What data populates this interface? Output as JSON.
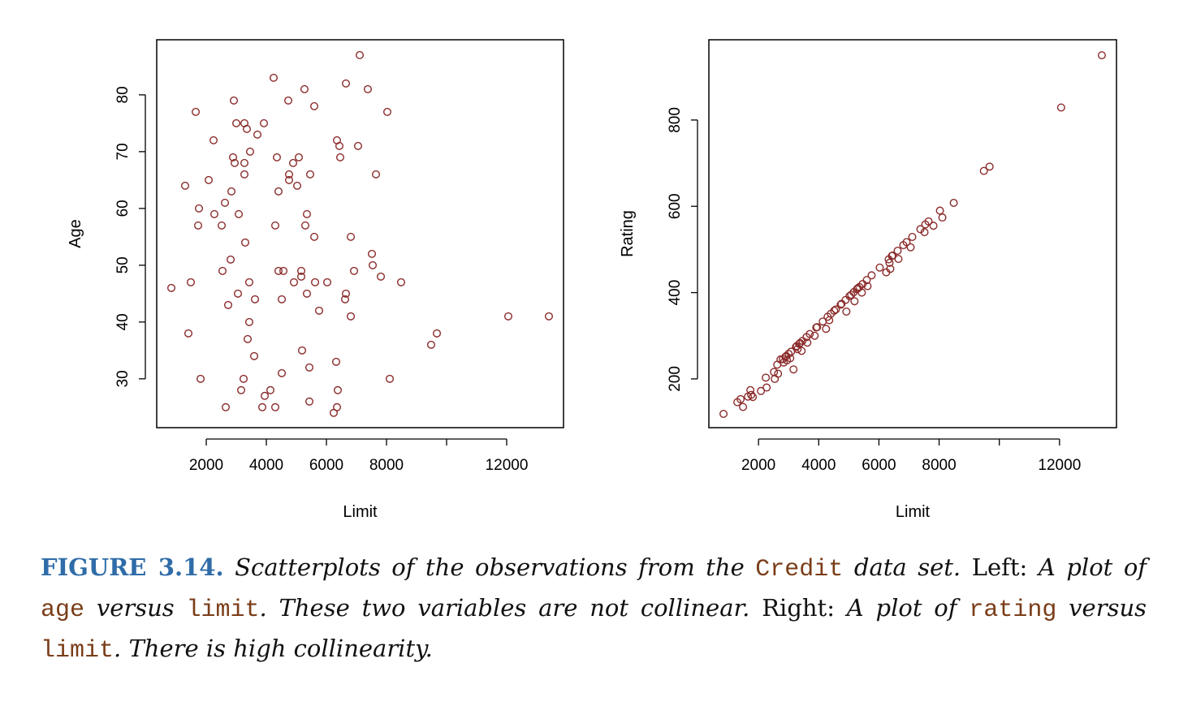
{
  "colors": {
    "points": "#8b2b2b",
    "caption_lead": "#2f6ca8",
    "code": "#7a3d18"
  },
  "chart_data": [
    {
      "type": "scatter",
      "title": "",
      "xlabel": "Limit",
      "ylabel": "Age",
      "xlim": [
        351,
        13892
      ],
      "ylim": [
        21.4,
        89.7
      ],
      "xticks": [
        2000,
        4000,
        6000,
        8000,
        10000,
        12000
      ],
      "xtick_labels": [
        "2000",
        "4000",
        "6000",
        "8000",
        "",
        "12000"
      ],
      "yticks": [
        30,
        40,
        50,
        60,
        70,
        80
      ],
      "ytick_labels": [
        "30",
        "40",
        "50",
        "60",
        "70",
        "80"
      ],
      "grid": false,
      "x": [
        838,
        1297,
        1405,
        1486,
        1649,
        1730,
        1757,
        1811,
        2081,
        2243,
        2270,
        2514,
        2541,
        2622,
        2649,
        2730,
        2811,
        2838,
        2892,
        2919,
        2946,
        3000,
        3054,
        3081,
        3162,
        3243,
        3270,
        3270,
        3270,
        3297,
        3351,
        3378,
        3432,
        3432,
        3459,
        3595,
        3622,
        3703,
        3865,
        3919,
        3946,
        4135,
        4243,
        4297,
        4297,
        4351,
        4405,
        4405,
        4514,
        4514,
        4568,
        4730,
        4757,
        4757,
        4892,
        4919,
        5027,
        5081,
        5162,
        5162,
        5189,
        5270,
        5297,
        5351,
        5351,
        5432,
        5432,
        5459,
        5595,
        5595,
        5622,
        5757,
        6027,
        6243,
        6324,
        6351,
        6351,
        6378,
        6432,
        6459,
        6622,
        6649,
        6649,
        6811,
        6811,
        6919,
        7054,
        7108,
        7378,
        7514,
        7541,
        7649,
        7811,
        8027,
        8108,
        8486,
        9486,
        9676,
        12054,
        13405
      ],
      "y": [
        46,
        64,
        38,
        47,
        77,
        57,
        60,
        30,
        65,
        72,
        59,
        57,
        49,
        61,
        25,
        43,
        51,
        63,
        69,
        79,
        68,
        75,
        45,
        59,
        28,
        30,
        75,
        68,
        66,
        54,
        74,
        37,
        47,
        40,
        70,
        34,
        44,
        73,
        25,
        75,
        27,
        28,
        83,
        57,
        25,
        69,
        63,
        49,
        44,
        31,
        49,
        79,
        66,
        65,
        68,
        47,
        64,
        69,
        49,
        48,
        35,
        81,
        57,
        59,
        45,
        32,
        26,
        66,
        78,
        55,
        47,
        42,
        47,
        24,
        33,
        72,
        25,
        28,
        71,
        69,
        44,
        82,
        45,
        55,
        41,
        49,
        71,
        87,
        81,
        52,
        50,
        66,
        48,
        77,
        30,
        47,
        36,
        38,
        41,
        41
      ]
    },
    {
      "type": "scatter",
      "title": "",
      "xlabel": "Limit",
      "ylabel": "Rating",
      "xlim": [
        351,
        13892
      ],
      "ylim": [
        87,
        986
      ],
      "xticks": [
        2000,
        4000,
        6000,
        8000,
        10000,
        12000
      ],
      "xtick_labels": [
        "2000",
        "4000",
        "6000",
        "8000",
        "",
        "12000"
      ],
      "yticks": [
        200,
        400,
        600,
        800
      ],
      "ytick_labels": [
        "200",
        "400",
        "600",
        "800"
      ],
      "grid": false,
      "x": [
        838,
        1297,
        1405,
        1486,
        1649,
        1730,
        1757,
        1811,
        2081,
        2243,
        2270,
        2514,
        2541,
        2622,
        2649,
        2730,
        2811,
        2838,
        2892,
        2919,
        2946,
        3000,
        3054,
        3081,
        3162,
        3243,
        3270,
        3297,
        3351,
        3378,
        3432,
        3459,
        3595,
        3622,
        3703,
        3865,
        3919,
        3946,
        4135,
        4243,
        4297,
        4351,
        4405,
        4514,
        4568,
        4730,
        4757,
        4892,
        4919,
        5027,
        5081,
        5162,
        5189,
        5270,
        5297,
        5351,
        5432,
        5459,
        5595,
        5622,
        5757,
        6027,
        6243,
        6324,
        6351,
        6378,
        6432,
        6459,
        6622,
        6649,
        6811,
        6919,
        7054,
        7108,
        7378,
        7514,
        7541,
        7649,
        7811,
        8027,
        8108,
        8486,
        9486,
        9676,
        12054,
        13405
      ],
      "y": [
        119,
        146,
        153,
        135,
        159,
        174,
        163,
        158,
        172,
        203,
        180,
        216,
        200,
        233,
        212,
        245,
        246,
        238,
        251,
        253,
        243,
        258,
        248,
        263,
        222,
        274,
        276,
        269,
        281,
        283,
        265,
        288,
        297,
        284,
        304,
        300,
        319,
        320,
        333,
        316,
        344,
        336,
        351,
        358,
        361,
        372,
        374,
        383,
        356,
        392,
        395,
        401,
        380,
        408,
        410,
        413,
        400,
        420,
        429,
        415,
        440,
        458,
        447,
        477,
        469,
        455,
        485,
        486,
        497,
        478,
        510,
        517,
        505,
        529,
        547,
        540,
        558,
        565,
        555,
        590,
        574,
        608,
        682,
        692,
        829,
        950
      ]
    }
  ],
  "caption": {
    "lead": "FIGURE 3.14.",
    "t1": "Scatterplots of the observations from the",
    "code1": "Credit",
    "t2": "data set.",
    "t3": "Left:",
    "t4": "A plot of",
    "code2": "age",
    "t5": "versus",
    "code3": "limit",
    "t6": ". These two variables are not collinear.",
    "t7": "Right:",
    "t8": "A plot of",
    "code4": "rating",
    "t9": "versus",
    "code5": "limit",
    "t10": ". There is high collinearity."
  }
}
